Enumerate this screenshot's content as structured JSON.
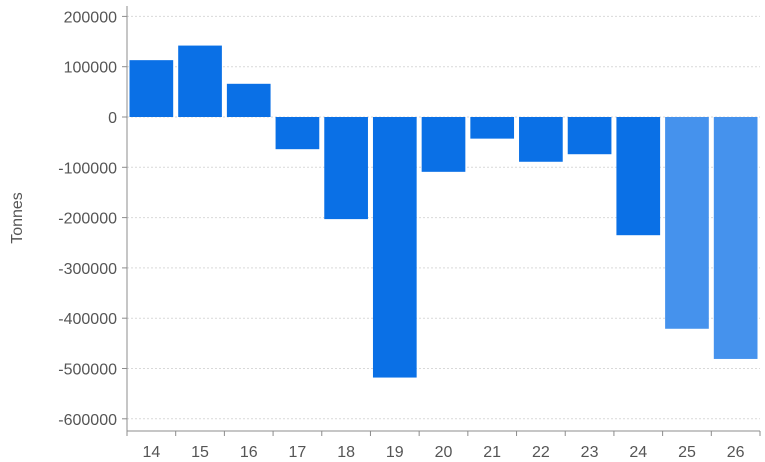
{
  "chart_data": {
    "type": "bar",
    "title": "",
    "xlabel": "",
    "ylabel": "Tonnes",
    "categories": [
      "14",
      "15",
      "16",
      "17",
      "18",
      "19",
      "20",
      "21",
      "22",
      "23",
      "24",
      "25",
      "26"
    ],
    "values": [
      113000,
      142000,
      66000,
      -64000,
      -203000,
      -518000,
      -109000,
      -43000,
      -89000,
      -74000,
      -235000,
      -421000,
      -481000
    ],
    "highlight": [
      false,
      false,
      false,
      false,
      false,
      false,
      false,
      false,
      false,
      false,
      false,
      true,
      true
    ],
    "ylim": [
      -620000,
      220000
    ],
    "yticks": [
      200000,
      100000,
      0,
      -100000,
      -200000,
      -300000,
      -400000,
      -500000,
      -600000
    ],
    "ytick_labels": [
      "200000",
      "100000",
      "0",
      "-100000",
      "-200000",
      "-300000",
      "-400000",
      "-500000",
      "-600000"
    ],
    "grid": true,
    "colors": {
      "bar": "#0a70e6",
      "bar_highlight": "#4592ed",
      "grid": "#d9d9d9",
      "axis": "#8c8c8c",
      "text": "#555555"
    }
  }
}
